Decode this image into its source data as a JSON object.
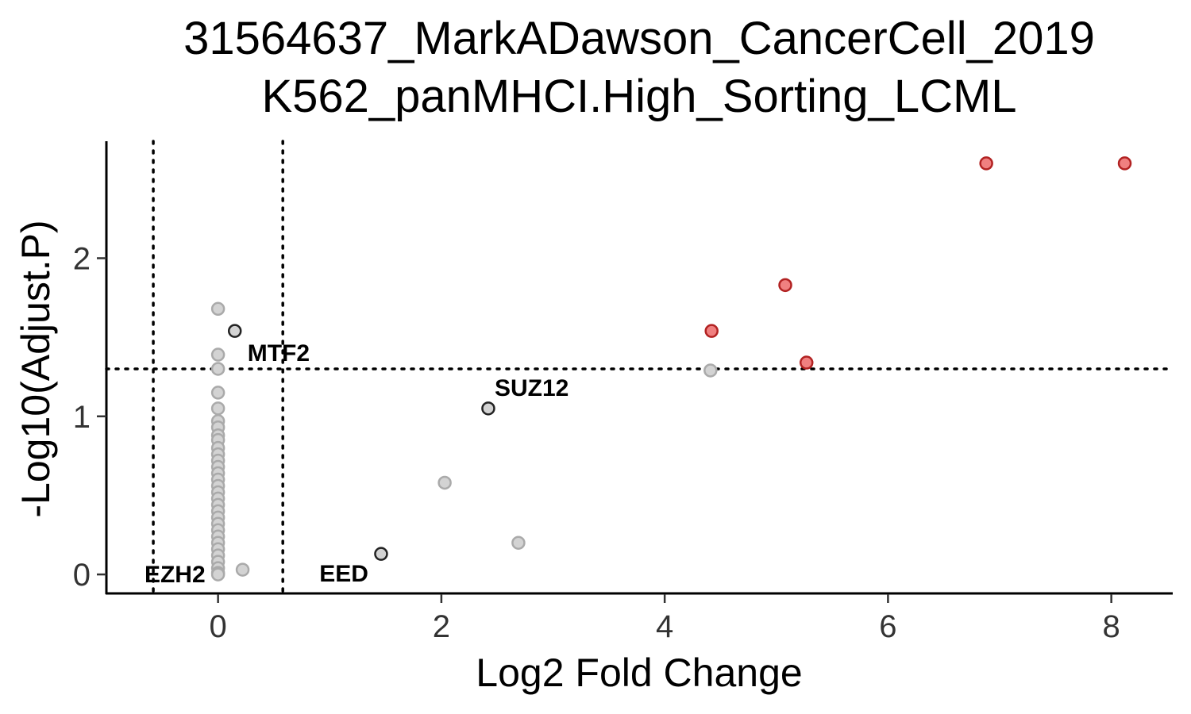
{
  "chart_data": {
    "type": "scatter",
    "title": [
      "31564637_MarkADawson_CancerCell_2019",
      "K562_panMHCI.High_Sorting_LCML"
    ],
    "xlabel": "Log2 Fold Change",
    "ylabel": "-Log10(Adjust.P)",
    "xlim": [
      -1.0,
      8.55
    ],
    "ylim": [
      -0.12,
      2.74
    ],
    "xticks": [
      0,
      2,
      4,
      6,
      8
    ],
    "yticks": [
      0,
      1,
      2
    ],
    "grid": false,
    "legend": "none",
    "thresholds": {
      "x": [
        -0.58,
        0.58
      ],
      "y": 1.3
    },
    "colors": {
      "significant_fill": "#f08080",
      "significant_stroke": "#b22222",
      "nonsig_fill": "#d3d3d3",
      "nonsig_stroke": "#aaaaaa",
      "highlight_fill": "#d3d3d3",
      "highlight_stroke": "#222222"
    },
    "points": {
      "significant": [
        {
          "x": 6.88,
          "y": 2.6
        },
        {
          "x": 8.12,
          "y": 2.6
        },
        {
          "x": 5.08,
          "y": 1.83
        },
        {
          "x": 4.42,
          "y": 1.54
        },
        {
          "x": 5.27,
          "y": 1.34
        }
      ],
      "nonsignificant": [
        {
          "x": 4.41,
          "y": 1.29
        },
        {
          "x": 2.03,
          "y": 0.58
        },
        {
          "x": 2.69,
          "y": 0.2
        },
        {
          "x": 0.22,
          "y": 0.03
        },
        {
          "x": 0.0,
          "y": 1.68
        },
        {
          "x": 0.0,
          "y": 1.39
        },
        {
          "x": 0.0,
          "y": 1.3
        },
        {
          "x": 0.0,
          "y": 1.15
        },
        {
          "x": 0.0,
          "y": 1.05
        },
        {
          "x": 0.0,
          "y": 0.97
        },
        {
          "x": 0.0,
          "y": 0.93
        },
        {
          "x": 0.0,
          "y": 0.88
        },
        {
          "x": 0.0,
          "y": 0.85
        },
        {
          "x": 0.0,
          "y": 0.8
        },
        {
          "x": 0.0,
          "y": 0.76
        },
        {
          "x": 0.0,
          "y": 0.72
        },
        {
          "x": 0.0,
          "y": 0.68
        },
        {
          "x": 0.0,
          "y": 0.64
        },
        {
          "x": 0.0,
          "y": 0.6
        },
        {
          "x": 0.0,
          "y": 0.56
        },
        {
          "x": 0.0,
          "y": 0.52
        },
        {
          "x": 0.0,
          "y": 0.48
        },
        {
          "x": 0.0,
          "y": 0.44
        },
        {
          "x": 0.0,
          "y": 0.4
        },
        {
          "x": 0.0,
          "y": 0.36
        },
        {
          "x": 0.0,
          "y": 0.32
        },
        {
          "x": 0.0,
          "y": 0.28
        },
        {
          "x": 0.0,
          "y": 0.24
        },
        {
          "x": 0.0,
          "y": 0.2
        },
        {
          "x": 0.0,
          "y": 0.16
        },
        {
          "x": 0.0,
          "y": 0.12
        },
        {
          "x": 0.0,
          "y": 0.08
        },
        {
          "x": 0.0,
          "y": 0.04
        },
        {
          "x": 0.0,
          "y": 0.01
        }
      ],
      "highlighted": [
        {
          "label": "MTF2",
          "x": 0.15,
          "y": 1.54
        },
        {
          "label": "SUZ12",
          "x": 2.42,
          "y": 1.05
        },
        {
          "label": "EED",
          "x": 1.46,
          "y": 0.13
        },
        {
          "label": "EZH2",
          "x": 0.0,
          "y": 0.0
        }
      ]
    }
  }
}
